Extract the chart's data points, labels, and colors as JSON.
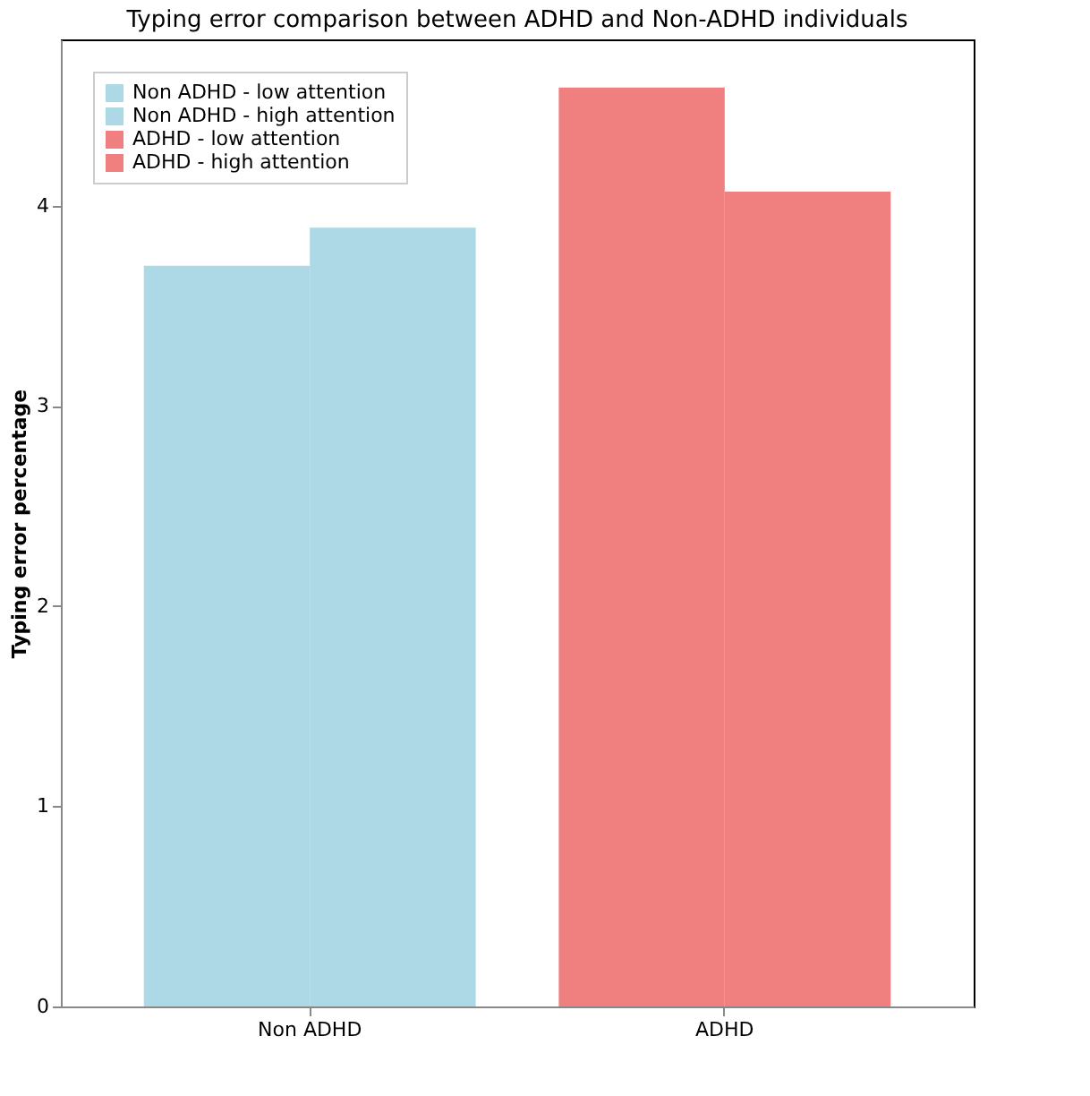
{
  "chart_data": {
    "type": "bar",
    "title": "Typing error comparison between ADHD and Non-ADHD individuals",
    "ylabel": "Typing error percentage",
    "categories": [
      "Non ADHD",
      "ADHD"
    ],
    "series": [
      {
        "name": "Non ADHD - low attention",
        "color": "#add8e6",
        "values": [
          3.7,
          null
        ]
      },
      {
        "name": "Non ADHD - high attention",
        "color": "#add8e6",
        "values": [
          3.89,
          null
        ]
      },
      {
        "name": "ADHD - low attention",
        "color": "#f08080",
        "values": [
          null,
          4.59
        ]
      },
      {
        "name": "ADHD - high attention",
        "color": "#f08080",
        "values": [
          null,
          4.07
        ]
      }
    ],
    "ylim": [
      0,
      4.83
    ],
    "yticks": [
      0,
      1,
      2,
      3,
      4
    ],
    "grid": false,
    "legend": "top left"
  }
}
